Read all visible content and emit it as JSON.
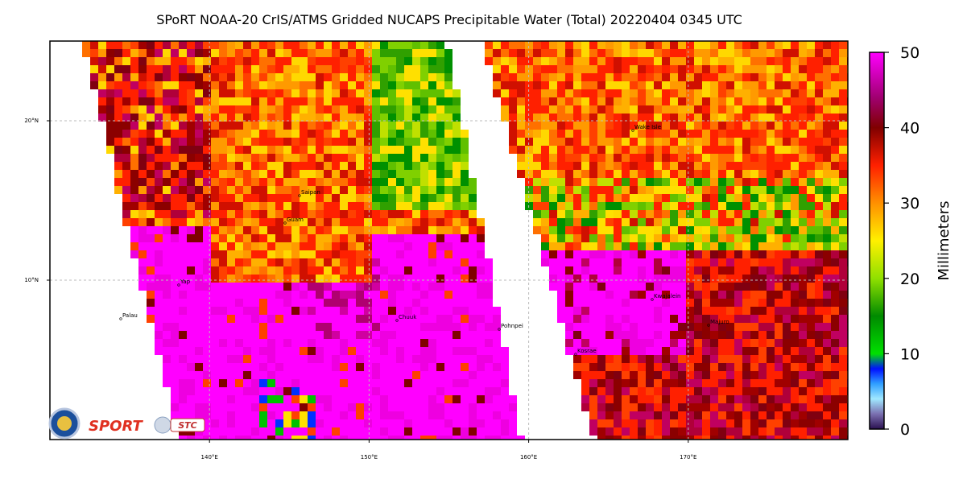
{
  "title": "SPoRT NOAA-20 CrIS/ATMS Gridded NUCAPS Precipitable Water (Total) 20220404 0345 UTC",
  "map": {
    "lon_range": [
      130,
      180
    ],
    "lat_range": [
      0,
      25
    ],
    "lon_ticks": [
      {
        "value": 140,
        "label": "140°E"
      },
      {
        "value": 150,
        "label": "150°E"
      },
      {
        "value": 160,
        "label": "160°E"
      },
      {
        "value": 170,
        "label": "170°E"
      }
    ],
    "lat_ticks": [
      {
        "value": 20,
        "label": "20°N"
      },
      {
        "value": 10,
        "label": "10°N"
      }
    ],
    "places": [
      "Wake Isle",
      "Saipan",
      "Guam",
      "Yap",
      "Palau",
      "Chuuk",
      "Pohnpei",
      "Kwajalein",
      "Majuro",
      "Kosrae"
    ]
  },
  "colorbar": {
    "label": "Millimeters",
    "range": [
      0,
      50
    ],
    "ticks": [
      0,
      10,
      20,
      30,
      40,
      50
    ]
  },
  "logos": [
    "SPORT",
    "STC"
  ]
}
